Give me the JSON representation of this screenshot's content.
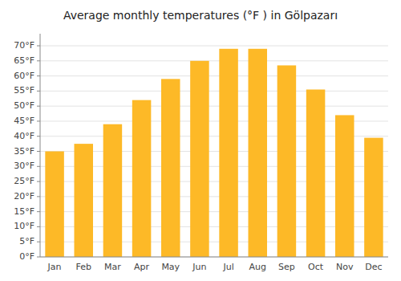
{
  "chart_data": {
    "type": "bar",
    "title": "Average monthly temperatures (°F ) in Gölpazarı",
    "categories": [
      "Jan",
      "Feb",
      "Mar",
      "Apr",
      "May",
      "Jun",
      "Jul",
      "Aug",
      "Sep",
      "Oct",
      "Nov",
      "Dec"
    ],
    "values": [
      35,
      37.5,
      44,
      52,
      59,
      65,
      69,
      69,
      63.5,
      55.5,
      47,
      39.5
    ],
    "color": "#FDB927",
    "ylim": [
      0,
      74
    ],
    "yticks": [
      {
        "value": 0,
        "label": "0°F"
      },
      {
        "value": 5,
        "label": "5°F"
      },
      {
        "value": 10,
        "label": "10°F"
      },
      {
        "value": 15,
        "label": "15°F"
      },
      {
        "value": 20,
        "label": "20°F"
      },
      {
        "value": 25,
        "label": "25°F"
      },
      {
        "value": 30,
        "label": "30°F"
      },
      {
        "value": 35,
        "label": "35°F"
      },
      {
        "value": 40,
        "label": "40°F"
      },
      {
        "value": 45,
        "label": "45°F"
      },
      {
        "value": 50,
        "label": "50°F"
      },
      {
        "value": 55,
        "label": "55°F"
      },
      {
        "value": 60,
        "label": "60°F"
      },
      {
        "value": 65,
        "label": "65°F"
      },
      {
        "value": 70,
        "label": "70°F"
      }
    ],
    "grid": true
  }
}
